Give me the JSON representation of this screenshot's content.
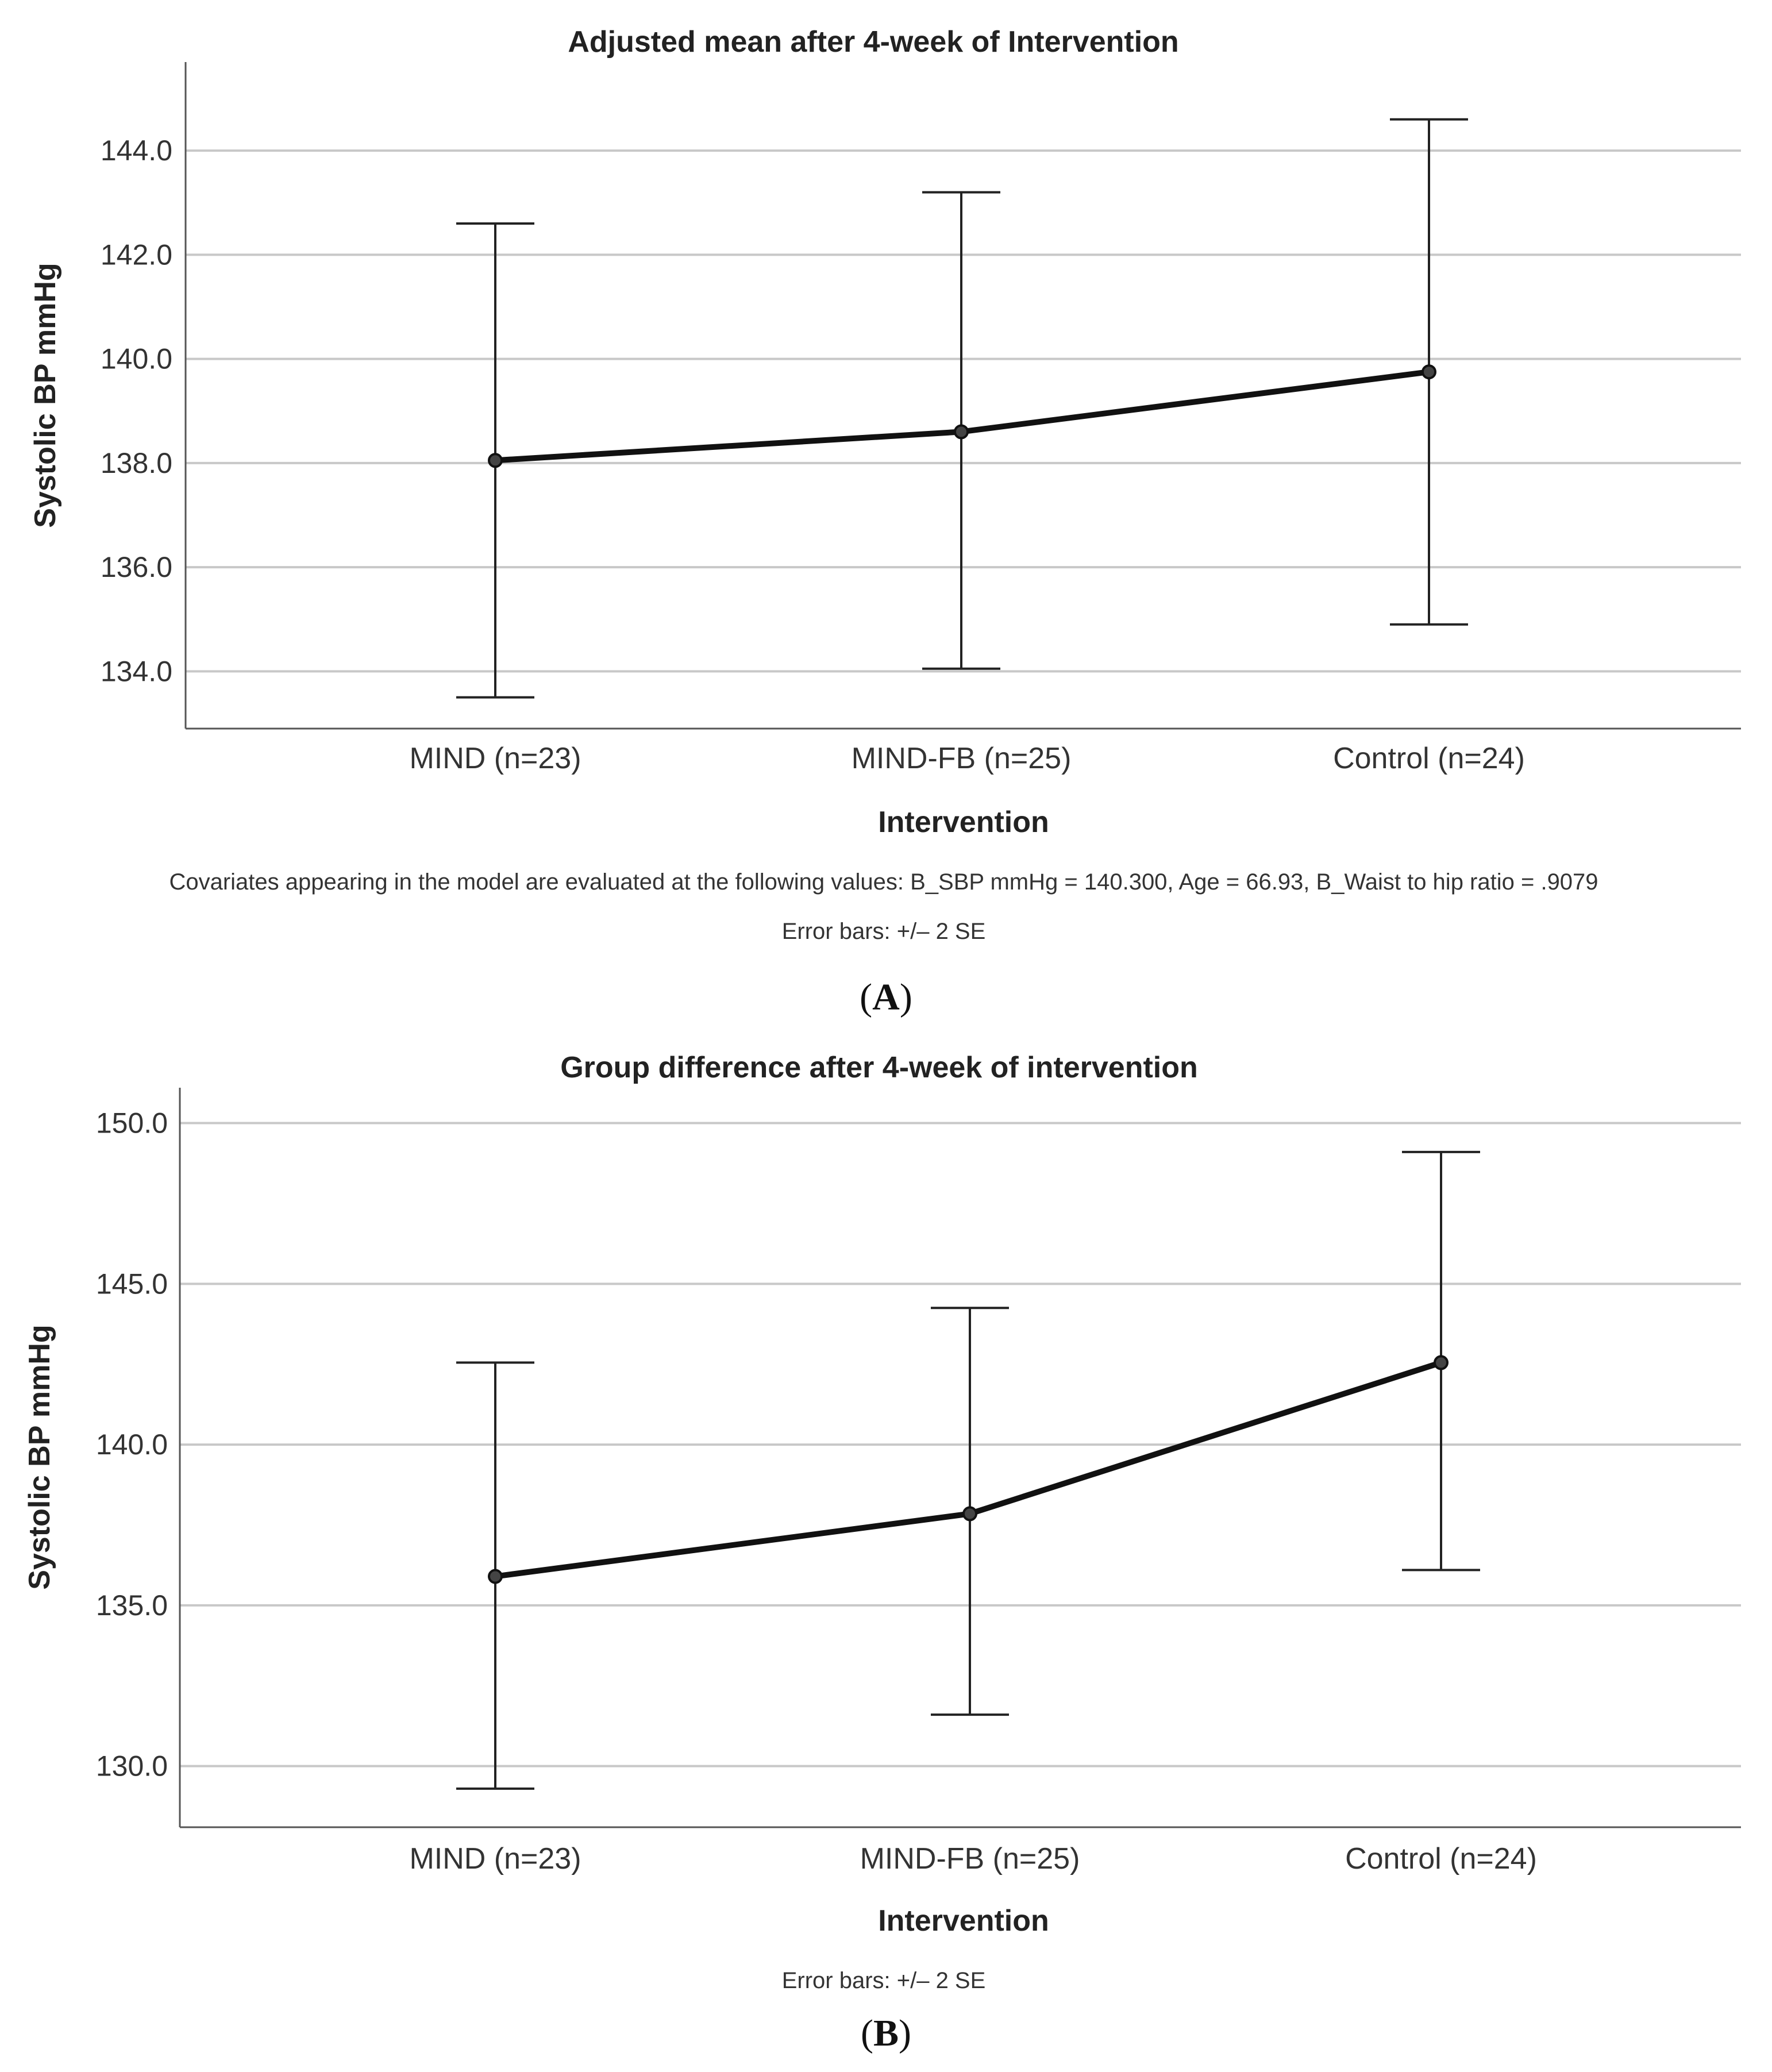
{
  "chart_data": [
    {
      "type": "line",
      "title": "Adjusted mean after 4-week of Intervention",
      "xlabel": "Intervention",
      "ylabel": "Systolic BP mmHg",
      "categories": [
        "MIND (n=23)",
        "MIND-FB (n=25)",
        "Control (n=24)"
      ],
      "values": [
        138.05,
        138.6,
        139.75
      ],
      "error_low": [
        133.5,
        134.05,
        134.9
      ],
      "error_high": [
        142.6,
        143.2,
        144.6
      ],
      "ylim": [
        132.9,
        145.7
      ],
      "yticks": [
        134,
        136,
        138,
        140,
        142,
        144
      ],
      "ytick_labels": [
        "134.0",
        "136.0",
        "138.0",
        "140.0",
        "142.0",
        "144.0"
      ],
      "grid": true,
      "notes": [
        "Covariates appearing in the model are evaluated at the following values: B_SBP mmHg = 140.300, Age = 66.93, B_Waist to hip ratio = .9079",
        "Error bars: +/– 2 SE"
      ],
      "panel_label": {
        "open": "(",
        "letter": "A",
        "close": ")"
      }
    },
    {
      "type": "line",
      "title": "Group difference after 4-week of intervention",
      "xlabel": "Intervention",
      "ylabel": "Systolic BP mmHg",
      "categories": [
        "MIND (n=23)",
        "MIND-FB (n=25)",
        "Control (n=24)"
      ],
      "values": [
        135.9,
        137.85,
        142.55
      ],
      "error_low": [
        129.3,
        131.6,
        136.1
      ],
      "error_high": [
        142.55,
        144.25,
        149.1
      ],
      "ylim": [
        128.1,
        151.1
      ],
      "yticks": [
        130,
        135,
        140,
        145,
        150
      ],
      "ytick_labels": [
        "130.0",
        "135.0",
        "140.0",
        "145.0",
        "150.0"
      ],
      "grid": true,
      "notes": [
        "Error bars: +/– 2 SE"
      ],
      "panel_label": {
        "open": "(",
        "letter": "B",
        "close": ")"
      }
    }
  ]
}
